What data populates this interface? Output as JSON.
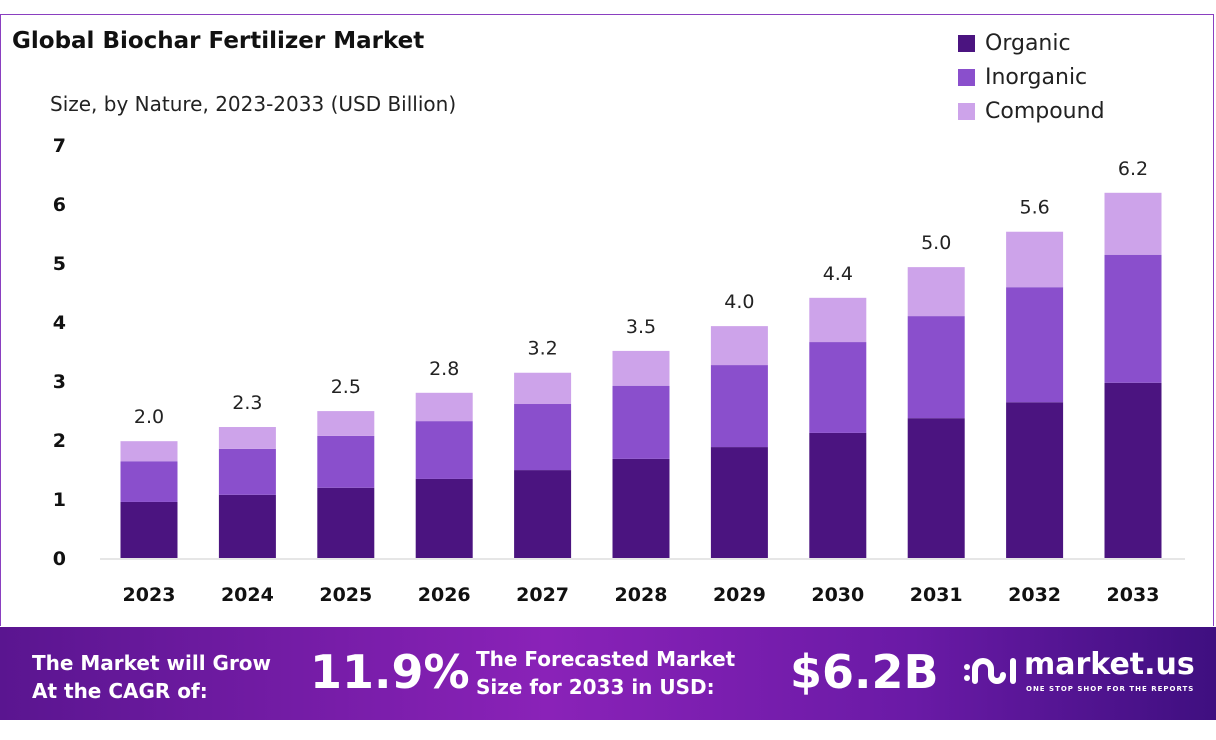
{
  "chart_data": {
    "type": "bar",
    "stacked": true,
    "title": "Global Biochar Fertilizer Market",
    "subtitle": "Size, by Nature, 2023-2033 (USD Billion)",
    "categories": [
      "2023",
      "2024",
      "2025",
      "2026",
      "2027",
      "2028",
      "2029",
      "2030",
      "2031",
      "2032",
      "2033"
    ],
    "series": [
      {
        "name": "Organic",
        "color": "#4b1480",
        "values": [
          0.95,
          1.07,
          1.19,
          1.34,
          1.49,
          1.68,
          1.88,
          2.12,
          2.37,
          2.64,
          2.97
        ]
      },
      {
        "name": "Inorganic",
        "color": "#8a4fcc",
        "values": [
          0.69,
          0.78,
          0.88,
          0.98,
          1.12,
          1.24,
          1.39,
          1.54,
          1.73,
          1.95,
          2.17
        ]
      },
      {
        "name": "Compound",
        "color": "#cda3ea",
        "values": [
          0.34,
          0.37,
          0.42,
          0.48,
          0.53,
          0.59,
          0.66,
          0.75,
          0.83,
          0.94,
          1.05
        ]
      }
    ],
    "totals_labels": [
      "2.0",
      "2.3",
      "2.5",
      "2.8",
      "3.2",
      "3.5",
      "4.0",
      "4.4",
      "5.0",
      "5.6",
      "6.2"
    ],
    "ylim": [
      0,
      7
    ],
    "yticks": [
      "0",
      "1",
      "2",
      "3",
      "4",
      "5",
      "6",
      "7"
    ],
    "grid": false,
    "legend_position": "top-right"
  },
  "banner": {
    "cagr_label_line1": "The Market will Grow",
    "cagr_label_line2": "At the CAGR of:",
    "cagr_value": "11.9%",
    "forecast_label_line1": "The Forecasted Market",
    "forecast_label_line2": "Size for 2033 in USD:",
    "forecast_value": "$6.2B",
    "logo_name": "market.us",
    "logo_tagline": "ONE STOP SHOP FOR THE REPORTS"
  }
}
